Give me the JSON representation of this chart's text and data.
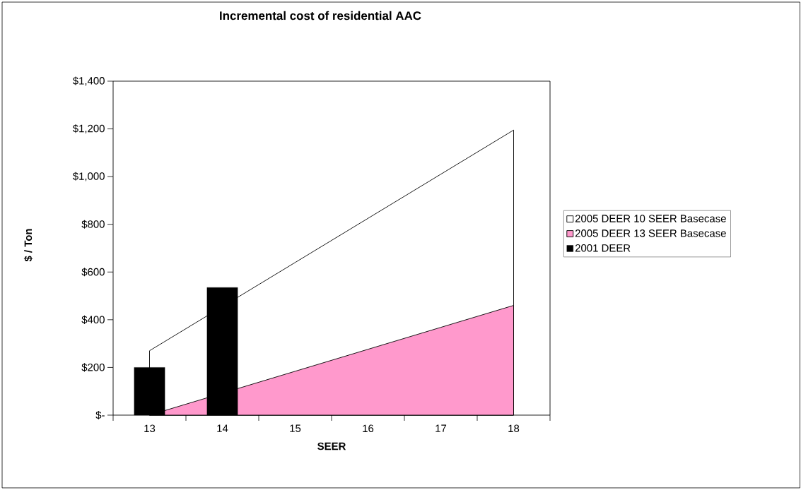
{
  "chart_data": {
    "type": "area",
    "title": "Incremental cost of residential AAC",
    "xlabel": "SEER",
    "ylabel": "$ / Ton",
    "categories": [
      "13",
      "14",
      "15",
      "16",
      "17",
      "18"
    ],
    "series": [
      {
        "name": "2005 DEER 10 SEER Basecase",
        "color": "#ffffff",
        "values": [
          270,
          null,
          640,
          825,
          1010,
          1195
        ]
      },
      {
        "name": "2005 DEER 13 SEER Basecase",
        "color": "#ff99cc",
        "values": [
          0,
          null,
          184,
          276,
          368,
          460
        ]
      },
      {
        "name": "2001 DEER",
        "type": "bar",
        "color": "#000000",
        "values": [
          200,
          535,
          null,
          null,
          null,
          null
        ]
      }
    ],
    "ylim": [
      0,
      1400
    ],
    "yticks": [
      {
        "value": 0,
        "label": "$-"
      },
      {
        "value": 200,
        "label": "$200"
      },
      {
        "value": 400,
        "label": "$400"
      },
      {
        "value": 600,
        "label": "$600"
      },
      {
        "value": 800,
        "label": "$800"
      },
      {
        "value": 1000,
        "label": "$1,000"
      },
      {
        "value": 1200,
        "label": "$1,200"
      },
      {
        "value": 1400,
        "label": "$1,400"
      }
    ],
    "legend": "right"
  }
}
